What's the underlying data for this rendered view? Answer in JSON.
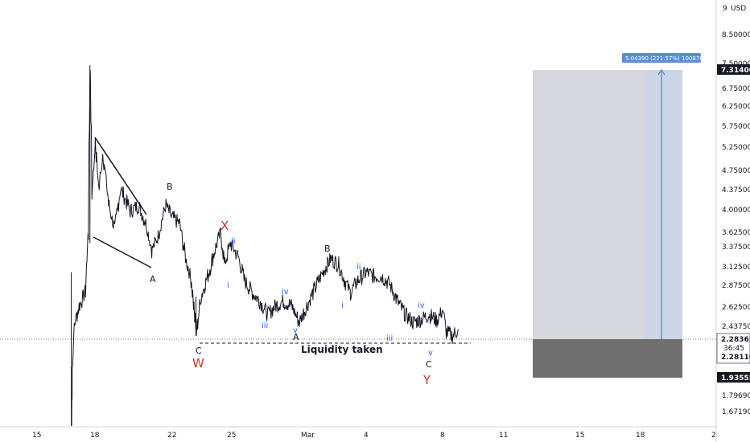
{
  "chart_data": {
    "type": "candlestick",
    "currency": "USD",
    "y_scale": "log",
    "ylim": [
      1.55,
      9.4
    ],
    "y_ticks": [
      "9",
      "8.50000",
      "7.50000",
      "6.75000",
      "6.25000",
      "5.75000",
      "5.25000",
      "4.75000",
      "4.37500",
      "4.00000",
      "3.62500",
      "3.37500",
      "3.12500",
      "2.87500",
      "2.62500",
      "2.43750",
      "1.79690",
      "1.67190"
    ],
    "x_ticks": [
      "15",
      "18",
      "22",
      "25",
      "Mar",
      "4",
      "8",
      "11",
      "15",
      "18",
      "2"
    ],
    "price_path": [
      {
        "x": 17.0,
        "y": 1.55
      },
      {
        "x": 17.05,
        "y": 2.0
      },
      {
        "x": 17.15,
        "y": 2.4
      },
      {
        "x": 17.4,
        "y": 2.6
      },
      {
        "x": 17.7,
        "y": 2.75
      },
      {
        "x": 17.85,
        "y": 3.5
      },
      {
        "x": 17.95,
        "y": 7.2
      },
      {
        "x": 18.05,
        "y": 4.2
      },
      {
        "x": 18.2,
        "y": 5.2
      },
      {
        "x": 18.4,
        "y": 4.3
      },
      {
        "x": 18.6,
        "y": 5.0
      },
      {
        "x": 18.9,
        "y": 4.0
      },
      {
        "x": 19.2,
        "y": 3.6
      },
      {
        "x": 19.5,
        "y": 4.3
      },
      {
        "x": 20.0,
        "y": 3.9
      },
      {
        "x": 20.4,
        "y": 4.0
      },
      {
        "x": 20.8,
        "y": 3.7
      },
      {
        "x": 21.1,
        "y": 3.3
      },
      {
        "x": 21.4,
        "y": 3.5
      },
      {
        "x": 21.8,
        "y": 4.0
      },
      {
        "x": 22.1,
        "y": 3.8
      },
      {
        "x": 22.5,
        "y": 3.7
      },
      {
        "x": 22.8,
        "y": 3.2
      },
      {
        "x": 23.1,
        "y": 2.9
      },
      {
        "x": 23.35,
        "y": 2.3
      },
      {
        "x": 23.6,
        "y": 2.7
      },
      {
        "x": 24.0,
        "y": 3.0
      },
      {
        "x": 24.3,
        "y": 3.3
      },
      {
        "x": 24.6,
        "y": 3.55
      },
      {
        "x": 24.8,
        "y": 3.1
      },
      {
        "x": 25.1,
        "y": 3.4
      },
      {
        "x": 25.5,
        "y": 3.2
      },
      {
        "x": 25.8,
        "y": 2.9
      },
      {
        "x": 26.2,
        "y": 2.75
      },
      {
        "x": 26.6,
        "y": 2.65
      },
      {
        "x": 27.0,
        "y": 2.5
      },
      {
        "x": 27.4,
        "y": 2.6
      },
      {
        "x": 27.8,
        "y": 2.65
      },
      {
        "x": 28.2,
        "y": 2.6
      },
      {
        "x": 28.6,
        "y": 2.42
      },
      {
        "x": 29.0,
        "y": 2.6
      },
      {
        "x": 29.4,
        "y": 2.8
      },
      {
        "x": 29.8,
        "y": 3.0
      },
      {
        "x": 30.2,
        "y": 3.18
      },
      {
        "x": 30.6,
        "y": 3.1
      },
      {
        "x": 30.9,
        "y": 2.9
      },
      {
        "x": 31.2,
        "y": 2.75
      },
      {
        "x": 31.6,
        "y": 2.9
      },
      {
        "x": 32.0,
        "y": 3.0
      },
      {
        "x": 32.4,
        "y": 2.95
      },
      {
        "x": 32.8,
        "y": 2.95
      },
      {
        "x": 33.2,
        "y": 2.85
      },
      {
        "x": 33.6,
        "y": 2.65
      },
      {
        "x": 34.0,
        "y": 2.5
      },
      {
        "x": 34.4,
        "y": 2.42
      },
      {
        "x": 34.8,
        "y": 2.45
      },
      {
        "x": 35.2,
        "y": 2.5
      },
      {
        "x": 35.6,
        "y": 2.44
      },
      {
        "x": 35.9,
        "y": 2.55
      },
      {
        "x": 36.1,
        "y": 2.32
      },
      {
        "x": 36.4,
        "y": 2.28
      },
      {
        "x": 36.7,
        "y": 2.35
      }
    ],
    "position": {
      "entry": 2.2811,
      "target": 7.314,
      "stop": 1.93555,
      "entry_label": "2.28110",
      "target_label": "7.31400",
      "stop_label": "1.93555",
      "current_price_label": "2.28365",
      "countdown_label": "36:45",
      "measure_label": "5.04390 (221.57%) 100878"
    },
    "annotations": {
      "wave_labels": [
        {
          "text": "B",
          "color": "black"
        },
        {
          "text": "A",
          "color": "black"
        },
        {
          "text": "C",
          "color": "black"
        },
        {
          "text": "W",
          "color": "red"
        },
        {
          "text": "X",
          "color": "red"
        },
        {
          "text": "ii",
          "color": "blue"
        },
        {
          "text": "i",
          "color": "blue"
        },
        {
          "text": "iii",
          "color": "blue"
        },
        {
          "text": "iv",
          "color": "blue"
        },
        {
          "text": "v",
          "color": "blue"
        },
        {
          "text": "A",
          "color": "black"
        },
        {
          "text": "B",
          "color": "black"
        },
        {
          "text": "i",
          "color": "blue"
        },
        {
          "text": "ii",
          "color": "blue"
        },
        {
          "text": "iii",
          "color": "blue"
        },
        {
          "text": "iv",
          "color": "blue"
        },
        {
          "text": "v",
          "color": "blue"
        },
        {
          "text": "C",
          "color": "black"
        },
        {
          "text": "Y",
          "color": "red"
        }
      ],
      "liquidity_text": "Liquidity taken"
    },
    "colors": {
      "candle": "#131722",
      "target_zone": "#d1d4dc",
      "target_zone_inner": "#b2c2dd",
      "stop_zone": "#6b6b6b",
      "measure_label_bg": "#5b8dd6",
      "wave_red": "#d32f2f",
      "wave_blue": "#2962ff"
    }
  }
}
